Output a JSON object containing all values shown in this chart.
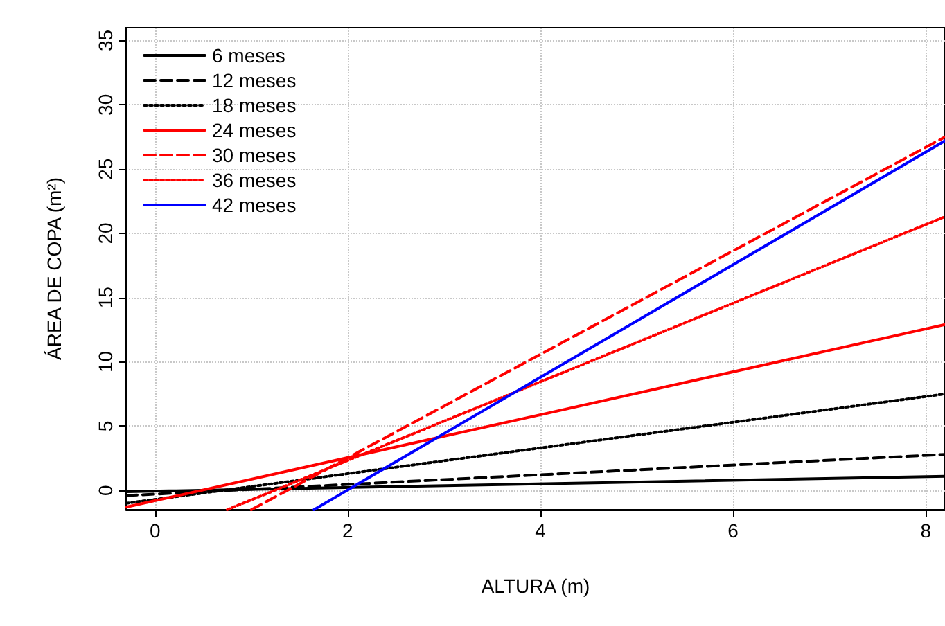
{
  "chart_data": {
    "type": "line",
    "xlabel": "ALTURA (m)",
    "ylabel": "ÁREA DE COPA (m²)",
    "xlim": [
      -0.3,
      8.2
    ],
    "ylim": [
      -1.5,
      36
    ],
    "xticks": [
      0,
      2,
      4,
      6,
      8
    ],
    "yticks": [
      0,
      5,
      10,
      15,
      20,
      25,
      30,
      35
    ],
    "grid": true,
    "legend": "top left",
    "marker": "none",
    "series": [
      {
        "name": "6 meses",
        "color": "#000000",
        "line_style": "solid",
        "x": [
          -0.3,
          8.2
        ],
        "values": [
          -0.1,
          1.1
        ]
      },
      {
        "name": "12 meses",
        "color": "#000000",
        "line_style": "dashed",
        "x": [
          -0.3,
          8.2
        ],
        "values": [
          -0.4,
          2.8
        ]
      },
      {
        "name": "18 meses",
        "color": "#000000",
        "line_style": "dotted",
        "x": [
          -0.3,
          8.2
        ],
        "values": [
          -1,
          7.5
        ]
      },
      {
        "name": "24 meses",
        "color": "#ff0000",
        "line_style": "solid",
        "x": [
          -0.3,
          8.2
        ],
        "values": [
          -1.3,
          12.9
        ]
      },
      {
        "name": "30 meses",
        "color": "#ff0000",
        "line_style": "dashed",
        "x": [
          1,
          8.2
        ],
        "values": [
          -1.5,
          27.5
        ]
      },
      {
        "name": "36 meses",
        "color": "#ff0000",
        "line_style": "dotted",
        "x": [
          0.75,
          8.2
        ],
        "values": [
          -1.5,
          21.3
        ]
      },
      {
        "name": "42 meses",
        "color": "#0000ff",
        "line_style": "solid",
        "x": [
          1.65,
          8.2
        ],
        "values": [
          -1.5,
          27.2
        ]
      }
    ]
  }
}
